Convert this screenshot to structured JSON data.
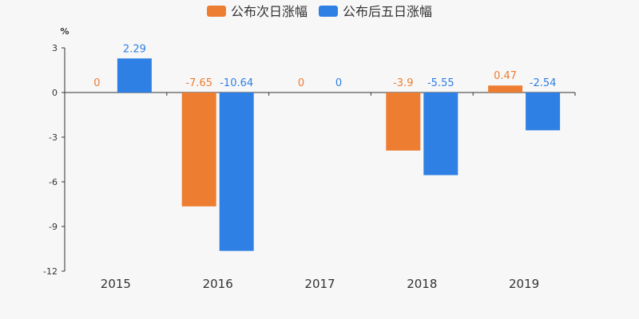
{
  "chart_data": {
    "type": "bar",
    "ylabel": "%",
    "categories": [
      "2015",
      "2016",
      "2017",
      "2018",
      "2019"
    ],
    "series": [
      {
        "name": "公布次日涨幅",
        "color": "#ed7d31",
        "values": [
          0,
          -7.65,
          0,
          -3.9,
          0.47
        ],
        "labels": [
          "0",
          "-7.65",
          "0",
          "-3.9",
          "0.47"
        ]
      },
      {
        "name": "公布后五日涨幅",
        "color": "#2f80e4",
        "values": [
          2.29,
          -10.64,
          0,
          -5.55,
          -2.54
        ],
        "labels": [
          "2.29",
          "-10.64",
          "0",
          "-5.55",
          "-2.54"
        ]
      }
    ],
    "ylim": [
      -12,
      3
    ],
    "yticks": [
      3,
      0,
      -3,
      -6,
      -9,
      -12
    ],
    "legend_position": "top-center",
    "grid": false
  }
}
